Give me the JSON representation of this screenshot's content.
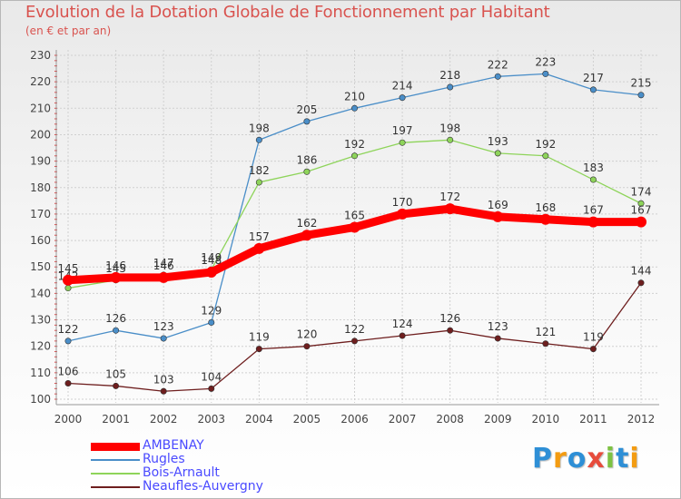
{
  "chart_data": {
    "type": "line",
    "title": "Evolution de la Dotation Globale de Fonctionnement par Habitant",
    "subtitle": "(en € et par an)",
    "xlabel": "",
    "ylabel": "",
    "x": [
      "2000",
      "2001",
      "2002",
      "2003",
      "2004",
      "2005",
      "2006",
      "2007",
      "2008",
      "2009",
      "2010",
      "2011",
      "2012"
    ],
    "ylim": [
      100,
      230
    ],
    "yticks": [
      100,
      110,
      120,
      130,
      140,
      150,
      160,
      170,
      180,
      190,
      200,
      210,
      220,
      230
    ],
    "grid": true,
    "legend_position": "bottom-left",
    "series": [
      {
        "name": "Rugles",
        "color": "#4a8ec8",
        "values": [
          122,
          126,
          123,
          129,
          198,
          205,
          210,
          214,
          218,
          222,
          223,
          217,
          215
        ]
      },
      {
        "name": "Bois-Arnault",
        "color": "#8ed45a",
        "values": [
          142,
          145,
          147,
          149,
          182,
          186,
          192,
          197,
          198,
          193,
          192,
          183,
          174
        ]
      },
      {
        "name": "Neaufles-Auvergny",
        "color": "#6e1e1e",
        "values": [
          106,
          105,
          103,
          104,
          119,
          120,
          122,
          124,
          126,
          123,
          121,
          119,
          144
        ]
      },
      {
        "name": "AMBENAY",
        "color": "#ff0000",
        "values": [
          145,
          146,
          146,
          148,
          157,
          162,
          165,
          170,
          172,
          169,
          168,
          167,
          167
        ]
      }
    ],
    "legend_order": [
      "AMBENAY",
      "Rugles",
      "Bois-Arnault",
      "Neaufles-Auvergny"
    ]
  },
  "logo": {
    "letters": [
      "P",
      "r",
      "o",
      "x",
      "i",
      "t",
      "i"
    ],
    "colors": [
      "#2e8fd6",
      "#f39c12",
      "#2e8fd6",
      "#e74c3c",
      "#7dc242",
      "#2e8fd6",
      "#f39c12"
    ]
  }
}
